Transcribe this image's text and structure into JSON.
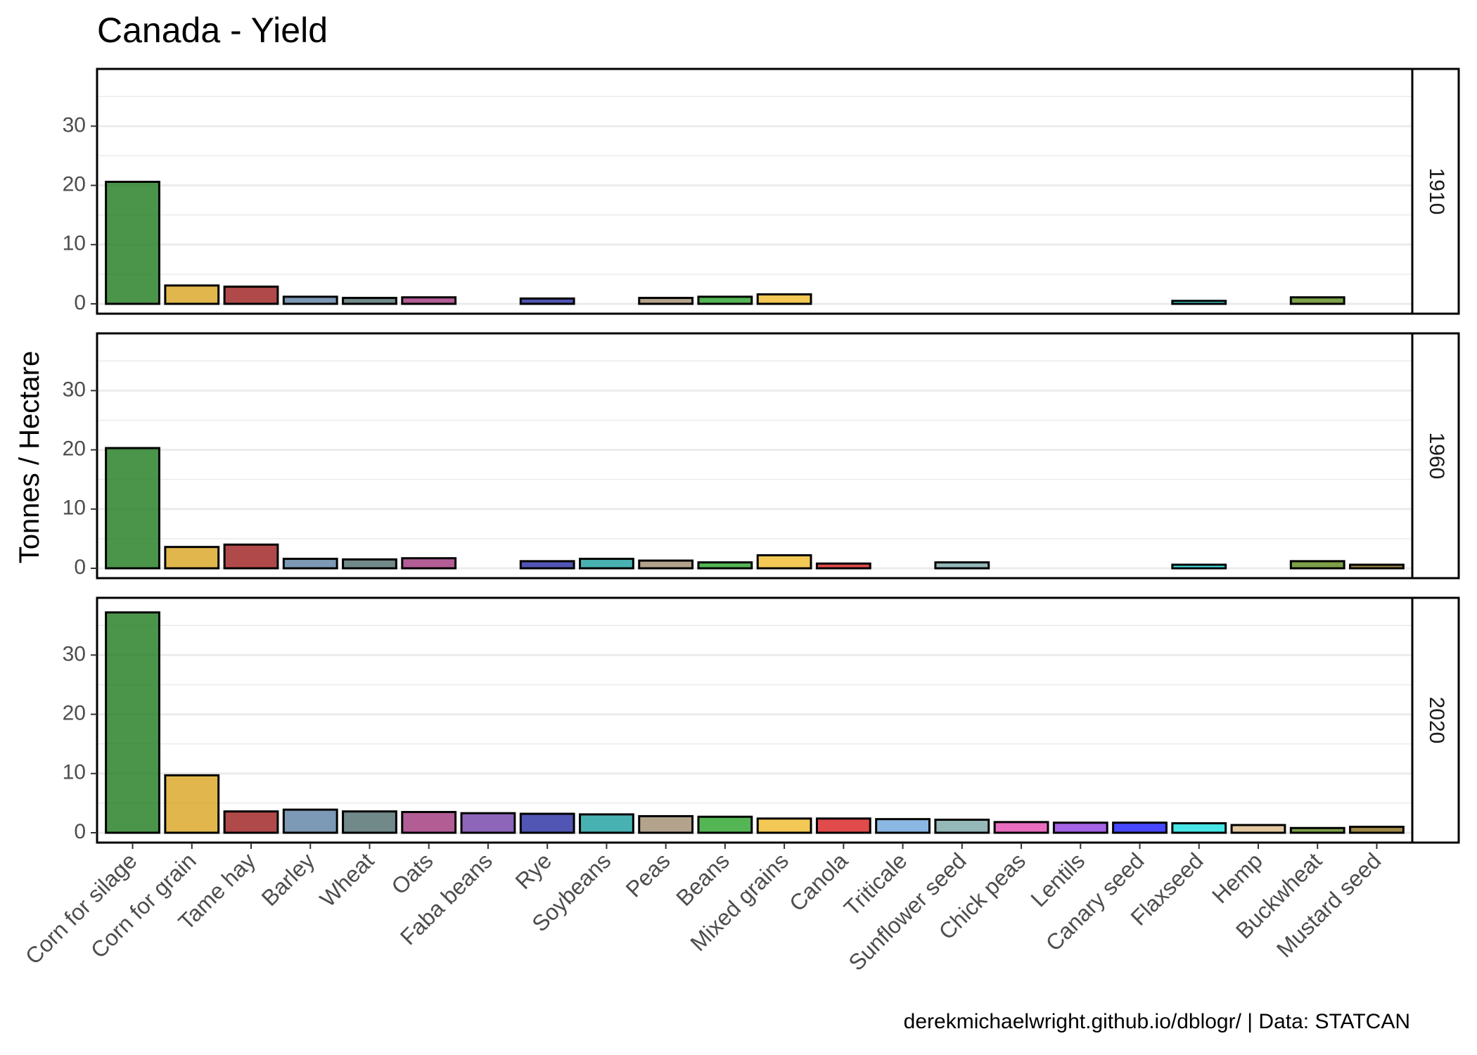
{
  "chart_data": {
    "type": "bar",
    "title": "Canada - Yield",
    "xlabel": "",
    "ylabel": "Tonnes / Hectare",
    "caption": "derekmichaelwright.github.io/dblogr/ | Data: STATCAN",
    "ylim": [
      0,
      38
    ],
    "yticks": [
      0,
      10,
      20,
      30
    ],
    "grid": true,
    "facet_strips": "right",
    "categories": [
      "Corn for silage",
      "Corn for grain",
      "Tame hay",
      "Barley",
      "Wheat",
      "Oats",
      "Faba beans",
      "Rye",
      "Soybeans",
      "Peas",
      "Beans",
      "Mixed grains",
      "Canola",
      "Triticale",
      "Sunflower seed",
      "Chick peas",
      "Lentils",
      "Canary seed",
      "Flaxseed",
      "Hemp",
      "Buckwheat",
      "Mustard seed"
    ],
    "colors": [
      "#1e7b1e",
      "#d9a520",
      "#9c1c1c",
      "#5b80a3",
      "#4f6b6b",
      "#a0357b",
      "#7040a8",
      "#262ba0",
      "#1a9e9e",
      "#a08c70",
      "#29a329",
      "#f0ba2a",
      "#d91e1e",
      "#6ea6dc",
      "#7aa6a6",
      "#e54ab0",
      "#8e3ee0",
      "#1a1aff",
      "#1ae0e0",
      "#dcbc8a",
      "#5c8a1a",
      "#8a6a1a"
    ],
    "panels": [
      {
        "label": "1910",
        "values": [
          20.6,
          3.1,
          2.9,
          1.2,
          1.0,
          1.1,
          null,
          0.9,
          null,
          1.0,
          1.2,
          1.6,
          null,
          null,
          null,
          null,
          null,
          null,
          0.5,
          null,
          1.1,
          null
        ]
      },
      {
        "label": "1960",
        "values": [
          20.3,
          3.6,
          4.0,
          1.6,
          1.5,
          1.7,
          null,
          1.2,
          1.6,
          1.3,
          1.0,
          2.2,
          0.8,
          null,
          1.0,
          null,
          null,
          null,
          0.6,
          null,
          1.2,
          0.6
        ]
      },
      {
        "label": "2020",
        "values": [
          37.2,
          9.7,
          3.6,
          3.9,
          3.6,
          3.5,
          3.3,
          3.2,
          3.1,
          2.8,
          2.7,
          2.4,
          2.4,
          2.3,
          2.2,
          1.8,
          1.7,
          1.7,
          1.6,
          1.3,
          0.8,
          1.0
        ]
      }
    ]
  }
}
